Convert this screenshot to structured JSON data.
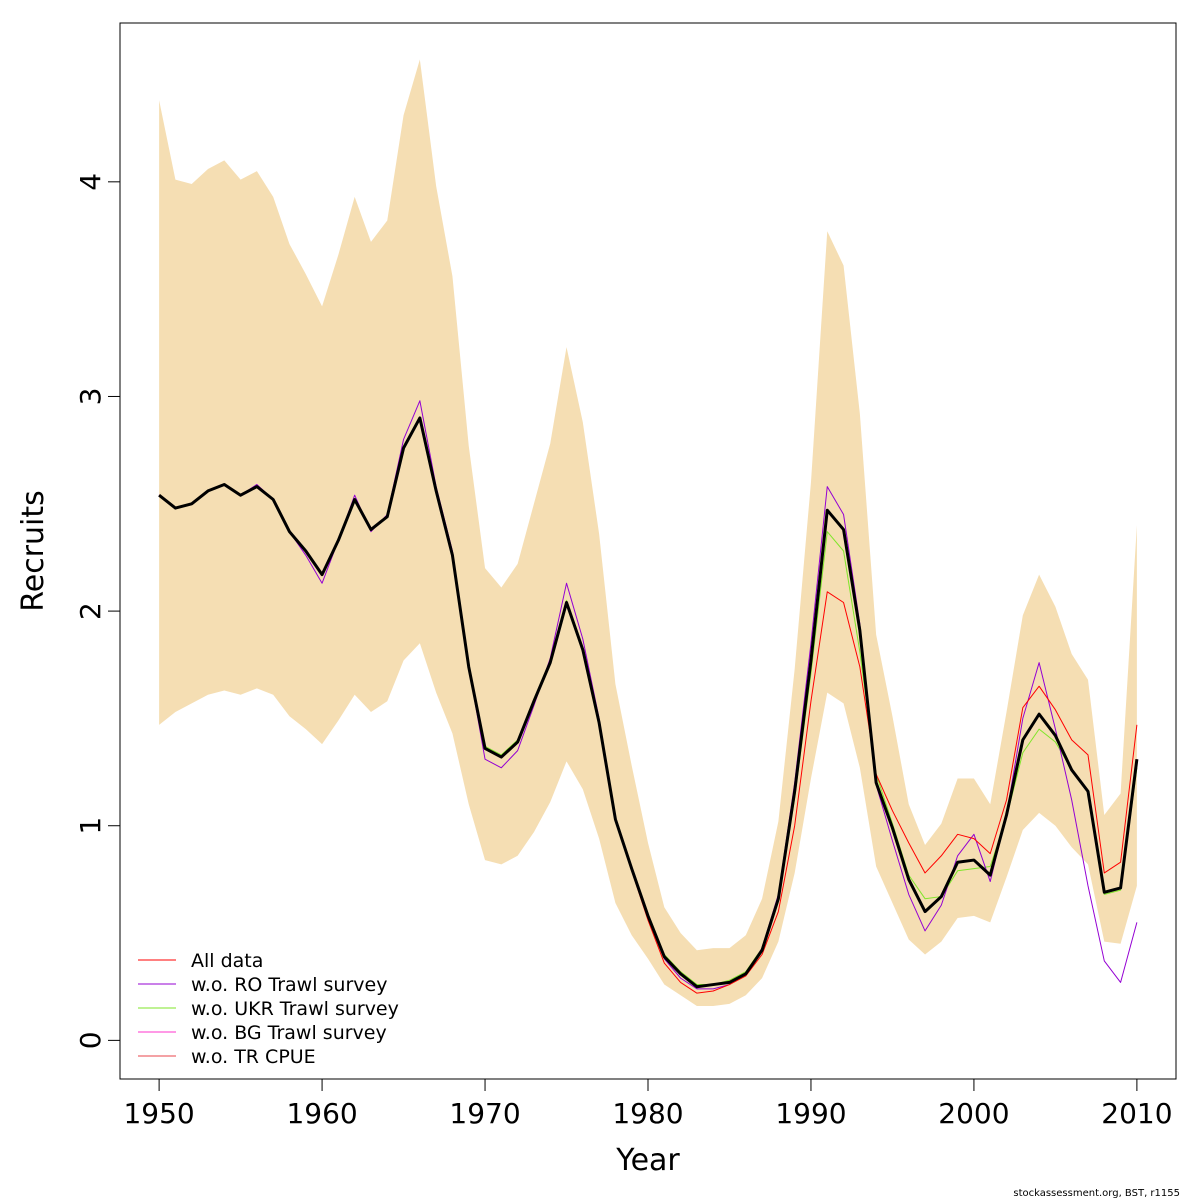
{
  "chart_data": {
    "type": "line",
    "xlabel": "Year",
    "ylabel": "Recruits",
    "xlim": [
      1947.6,
      2012.4
    ],
    "ylim": [
      -0.18,
      4.74
    ],
    "xticks": [
      1950,
      1960,
      1970,
      1980,
      1990,
      2000,
      2010
    ],
    "xtick_labels": [
      "1950",
      "1960",
      "1970",
      "1980",
      "1990",
      "2000",
      "2010"
    ],
    "yticks": [
      0,
      1,
      2,
      3,
      4
    ],
    "ytick_labels": [
      "0",
      "1",
      "2",
      "3",
      "4"
    ],
    "grid": false,
    "legend_position": "bottom-left",
    "footer": "stockassessment.org, BST, r1155",
    "band": {
      "color": "#F5DEB3",
      "x": [
        1950,
        1951,
        1952,
        1953,
        1954,
        1955,
        1956,
        1957,
        1958,
        1959,
        1960,
        1961,
        1962,
        1963,
        1964,
        1965,
        1966,
        1967,
        1968,
        1969,
        1970,
        1971,
        1972,
        1973,
        1974,
        1975,
        1976,
        1977,
        1978,
        1979,
        1980,
        1981,
        1982,
        1983,
        1984,
        1985,
        1986,
        1987,
        1988,
        1989,
        1990,
        1991,
        1992,
        1993,
        1994,
        1995,
        1996,
        1997,
        1998,
        1999,
        2000,
        2001,
        2002,
        2003,
        2004,
        2005,
        2006,
        2007,
        2008,
        2009,
        2010
      ],
      "upper": [
        4.38,
        4.01,
        3.99,
        4.06,
        4.1,
        4.01,
        4.05,
        3.93,
        3.71,
        3.57,
        3.42,
        3.66,
        3.93,
        3.72,
        3.82,
        4.31,
        4.57,
        3.98,
        3.56,
        2.77,
        2.2,
        2.11,
        2.22,
        2.5,
        2.78,
        3.23,
        2.88,
        2.36,
        1.66,
        1.28,
        0.92,
        0.62,
        0.5,
        0.42,
        0.43,
        0.43,
        0.49,
        0.66,
        1.02,
        1.73,
        2.6,
        3.77,
        3.61,
        2.92,
        1.89,
        1.51,
        1.1,
        0.91,
        1.01,
        1.22,
        1.22,
        1.1,
        1.53,
        1.98,
        2.17,
        2.02,
        1.8,
        1.68,
        1.05,
        1.15,
        2.4
      ],
      "lower": [
        1.47,
        1.53,
        1.57,
        1.61,
        1.63,
        1.61,
        1.64,
        1.61,
        1.51,
        1.45,
        1.38,
        1.49,
        1.61,
        1.53,
        1.58,
        1.77,
        1.85,
        1.62,
        1.43,
        1.1,
        0.84,
        0.82,
        0.86,
        0.97,
        1.11,
        1.3,
        1.17,
        0.94,
        0.64,
        0.49,
        0.38,
        0.26,
        0.21,
        0.16,
        0.16,
        0.17,
        0.21,
        0.29,
        0.46,
        0.78,
        1.22,
        1.62,
        1.57,
        1.27,
        0.81,
        0.64,
        0.47,
        0.4,
        0.46,
        0.57,
        0.58,
        0.55,
        0.76,
        0.98,
        1.06,
        1.0,
        0.9,
        0.82,
        0.46,
        0.45,
        0.72
      ]
    },
    "series": [
      {
        "name": "",
        "color": "#000000",
        "width": 3,
        "values": [
          2.54,
          2.48,
          2.5,
          2.56,
          2.59,
          2.54,
          2.58,
          2.52,
          2.37,
          2.28,
          2.17,
          2.33,
          2.52,
          2.38,
          2.44,
          2.76,
          2.9,
          2.56,
          2.26,
          1.74,
          1.36,
          1.32,
          1.39,
          1.58,
          1.76,
          2.04,
          1.82,
          1.48,
          1.03,
          0.8,
          0.58,
          0.39,
          0.31,
          0.25,
          0.26,
          0.27,
          0.31,
          0.42,
          0.66,
          1.16,
          1.77,
          2.47,
          2.38,
          1.91,
          1.2,
          0.99,
          0.75,
          0.6,
          0.67,
          0.83,
          0.84,
          0.77,
          1.05,
          1.4,
          1.52,
          1.42,
          1.26,
          1.16,
          0.69,
          0.71,
          1.31
        ]
      },
      {
        "name": "All data",
        "color": "#FF0000",
        "width": 1,
        "values": [
          2.54,
          2.48,
          2.5,
          2.56,
          2.59,
          2.54,
          2.58,
          2.52,
          2.37,
          2.28,
          2.17,
          2.33,
          2.52,
          2.38,
          2.44,
          2.76,
          2.9,
          2.56,
          2.26,
          1.74,
          1.36,
          1.32,
          1.39,
          1.58,
          1.76,
          2.04,
          1.82,
          1.48,
          1.03,
          0.79,
          0.56,
          0.36,
          0.27,
          0.22,
          0.23,
          0.26,
          0.3,
          0.4,
          0.6,
          1.0,
          1.58,
          2.09,
          2.04,
          1.74,
          1.24,
          1.07,
          0.92,
          0.78,
          0.86,
          0.96,
          0.94,
          0.87,
          1.12,
          1.55,
          1.65,
          1.54,
          1.4,
          1.33,
          0.78,
          0.83,
          1.47
        ]
      },
      {
        "name": "w.o. RO Trawl survey",
        "color": "#9400D3",
        "width": 1,
        "values": [
          2.54,
          2.48,
          2.5,
          2.56,
          2.59,
          2.54,
          2.59,
          2.52,
          2.37,
          2.26,
          2.13,
          2.33,
          2.54,
          2.37,
          2.45,
          2.8,
          2.98,
          2.58,
          2.28,
          1.74,
          1.31,
          1.27,
          1.35,
          1.56,
          1.78,
          2.13,
          1.87,
          1.5,
          1.04,
          0.8,
          0.58,
          0.38,
          0.29,
          0.24,
          0.24,
          0.26,
          0.31,
          0.43,
          0.68,
          1.2,
          1.85,
          2.58,
          2.45,
          1.94,
          1.19,
          0.93,
          0.68,
          0.51,
          0.63,
          0.86,
          0.96,
          0.74,
          1.05,
          1.5,
          1.76,
          1.45,
          1.12,
          0.72,
          0.37,
          0.27,
          0.55
        ]
      },
      {
        "name": "w.o. UKR Trawl survey",
        "color": "#7FE62A",
        "width": 1,
        "values": [
          2.54,
          2.48,
          2.5,
          2.56,
          2.59,
          2.54,
          2.58,
          2.52,
          2.37,
          2.28,
          2.17,
          2.33,
          2.52,
          2.38,
          2.44,
          2.76,
          2.9,
          2.56,
          2.26,
          1.74,
          1.37,
          1.33,
          1.4,
          1.59,
          1.77,
          2.05,
          1.82,
          1.48,
          1.04,
          0.81,
          0.59,
          0.4,
          0.32,
          0.26,
          0.26,
          0.28,
          0.32,
          0.43,
          0.66,
          1.13,
          1.71,
          2.37,
          2.28,
          1.81,
          1.24,
          1.01,
          0.77,
          0.66,
          0.67,
          0.79,
          0.8,
          0.81,
          1.04,
          1.34,
          1.45,
          1.39,
          1.26,
          1.16,
          0.68,
          0.7,
          1.27
        ]
      },
      {
        "name": "w.o. BG Trawl survey",
        "color": "#FF33CC",
        "width": 1,
        "values": [
          2.54,
          2.48,
          2.5,
          2.56,
          2.59,
          2.54,
          2.58,
          2.52,
          2.37,
          2.28,
          2.17,
          2.33,
          2.52,
          2.38,
          2.44,
          2.76,
          2.9,
          2.56,
          2.26,
          1.74,
          1.36,
          1.32,
          1.39,
          1.58,
          1.76,
          2.04,
          1.82,
          1.48,
          1.03,
          0.8,
          0.58,
          0.39,
          0.31,
          0.25,
          0.26,
          0.27,
          0.31,
          0.42,
          0.66,
          1.16,
          1.77,
          2.47,
          2.38,
          1.91,
          1.2,
          0.99,
          0.75,
          0.6,
          0.67,
          0.83,
          0.84,
          0.77,
          1.05,
          1.4,
          1.52,
          1.42,
          1.26,
          1.16,
          0.69,
          0.71,
          1.31
        ]
      },
      {
        "name": "w.o. TR CPUE",
        "color": "#E8464B",
        "width": 1,
        "values": [
          2.54,
          2.48,
          2.5,
          2.56,
          2.59,
          2.54,
          2.58,
          2.52,
          2.37,
          2.28,
          2.17,
          2.33,
          2.52,
          2.38,
          2.44,
          2.76,
          2.9,
          2.56,
          2.26,
          1.74,
          1.36,
          1.32,
          1.39,
          1.58,
          1.76,
          2.04,
          1.82,
          1.48,
          1.03,
          0.8,
          0.58,
          0.39,
          0.31,
          0.25,
          0.26,
          0.27,
          0.31,
          0.42,
          0.66,
          1.16,
          1.77,
          2.47,
          2.38,
          1.91,
          1.2,
          0.99,
          0.75,
          0.6,
          0.67,
          0.83,
          0.84,
          0.77,
          1.05,
          1.4,
          1.52,
          1.42,
          1.26,
          1.16,
          0.69,
          0.71,
          1.31
        ]
      }
    ],
    "legend": [
      {
        "label": "All data",
        "color": "#FF0000"
      },
      {
        "label": "w.o. RO Trawl survey",
        "color": "#9400D3"
      },
      {
        "label": "w.o. UKR Trawl survey",
        "color": "#7FE62A"
      },
      {
        "label": "w.o. BG Trawl survey",
        "color": "#FF33CC"
      },
      {
        "label": "w.o. TR CPUE",
        "color": "#E8464B"
      }
    ]
  }
}
